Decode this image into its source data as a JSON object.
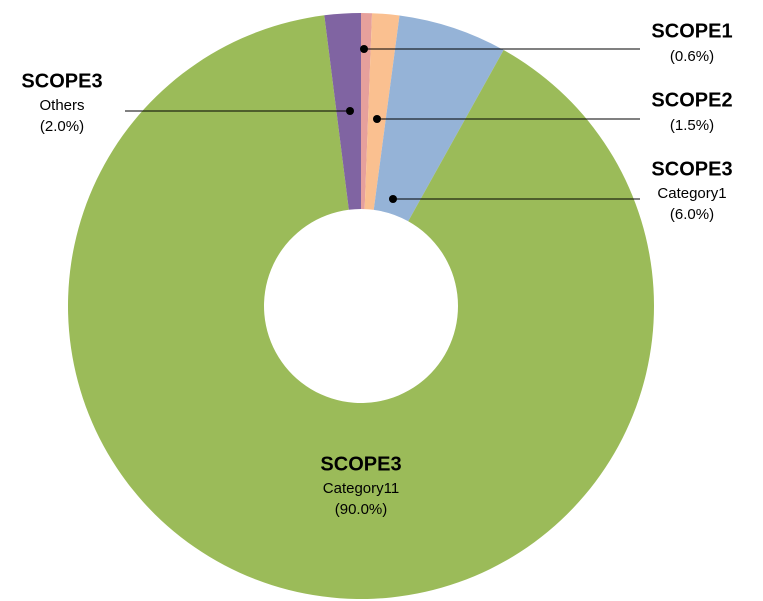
{
  "chart_data": {
    "type": "donut",
    "categories": [
      "SCOPE1",
      "SCOPE2",
      "SCOPE3",
      "SCOPE3",
      "SCOPE3"
    ],
    "sublabels": [
      null,
      null,
      "Category1",
      "Category11",
      "Others"
    ],
    "values": [
      0.6,
      1.5,
      6.0,
      90.0,
      2.0
    ],
    "value_labels": [
      "(0.6%)",
      "(1.5%)",
      "(6.0%)",
      "(90.0%)",
      "(2.0%)"
    ],
    "colors": [
      "#e6a09c",
      "#fac090",
      "#95b3d7",
      "#9bbb59",
      "#8064a2"
    ]
  }
}
